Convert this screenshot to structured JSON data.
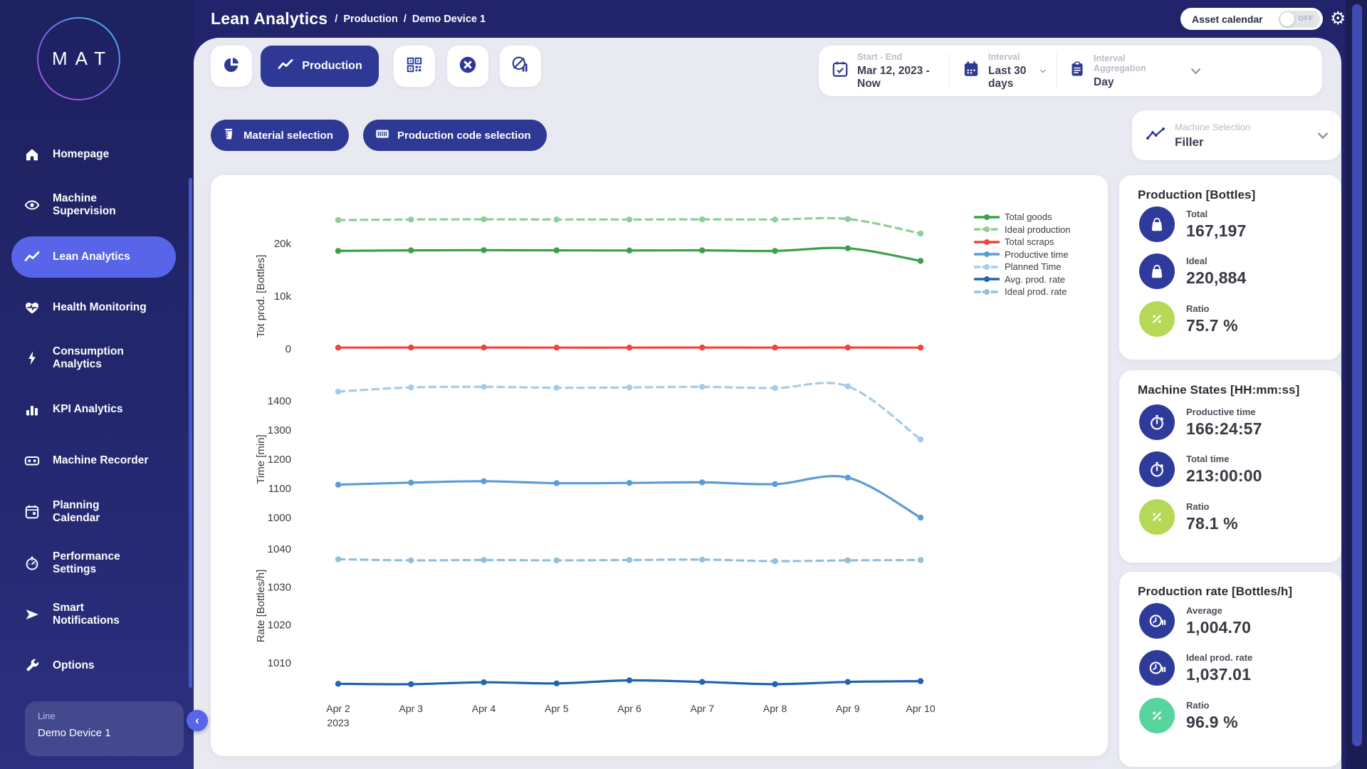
{
  "header": {
    "title": "Lean Analytics",
    "breadcrumbs": [
      "Production",
      "Demo Device 1"
    ],
    "asset_calendar_label": "Asset calendar",
    "asset_calendar_state": "OFF"
  },
  "toolbar": {
    "production_label": "Production"
  },
  "filters": {
    "start_end_label": "Start - End",
    "start_end_value": "Mar 12, 2023 - Now",
    "interval_label": "Interval",
    "interval_value": "Last 30 days",
    "aggregation_label": "Interval Aggregation",
    "aggregation_value": "Day",
    "material_button": "Material selection",
    "production_code_button": "Production code selection",
    "machine_selection_label": "Machine Selection",
    "machine_selection_value": "Filler"
  },
  "sidebar": {
    "logo_text": "MAT",
    "items": [
      {
        "label": "Homepage"
      },
      {
        "label": "Machine\nSupervision"
      },
      {
        "label": "Lean Analytics",
        "active": true
      },
      {
        "label": "Health Monitoring"
      },
      {
        "label": "Consumption\nAnalytics"
      },
      {
        "label": "KPI Analytics"
      },
      {
        "label": "Machine Recorder"
      },
      {
        "label": "Planning\nCalendar"
      },
      {
        "label": "Performance\nSettings"
      },
      {
        "label": "Smart\nNotifications"
      },
      {
        "label": "Options"
      }
    ],
    "line_label": "Line",
    "line_value": "Demo Device 1"
  },
  "colors": {
    "accent": "#2d3994",
    "active_nav": "#5865e8",
    "stat_icon_blue": "#2e3b9b",
    "ratio_lime": "#b5d957",
    "ratio_mint": "#57d59c"
  },
  "chart_data": [
    {
      "type": "line",
      "ylabel": "Tot prod. [Bottles]",
      "x": [
        "Apr 2",
        "Apr 3",
        "Apr 4",
        "Apr 5",
        "Apr 6",
        "Apr 7",
        "Apr 8",
        "Apr 9",
        "Apr 10"
      ],
      "x_sublabel": "2023",
      "yticks": [
        0,
        10000,
        20000
      ],
      "ytick_labels": [
        "0",
        "10k",
        "20k"
      ],
      "ylim": [
        -1800,
        26500
      ],
      "grid": false,
      "legend_position": "right",
      "series": [
        {
          "name": "Total goods",
          "color": "#3aa04a",
          "dashed": false,
          "values": [
            18600,
            18700,
            18750,
            18700,
            18680,
            18700,
            18600,
            19100,
            16700
          ]
        },
        {
          "name": "Ideal production",
          "color": "#8fce97",
          "dashed": true,
          "values": [
            24450,
            24550,
            24600,
            24550,
            24560,
            24580,
            24550,
            24650,
            21900
          ]
        },
        {
          "name": "Total scraps",
          "color": "#ef453c",
          "dashed": false,
          "values": [
            250,
            260,
            255,
            250,
            250,
            255,
            250,
            260,
            250
          ]
        }
      ]
    },
    {
      "type": "line",
      "ylabel": "Time [min]",
      "x": [
        "Apr 2",
        "Apr 3",
        "Apr 4",
        "Apr 5",
        "Apr 6",
        "Apr 7",
        "Apr 8",
        "Apr 9",
        "Apr 10"
      ],
      "yticks": [
        1000,
        1100,
        1200,
        1300,
        1400
      ],
      "ytick_labels": [
        "1000",
        "1100",
        "1200",
        "1300",
        "1400"
      ],
      "ylim": [
        960,
        1500
      ],
      "grid": false,
      "series": [
        {
          "name": "Productive time",
          "color": "#5b9cd6",
          "dashed": false,
          "values": [
            1113,
            1120,
            1125,
            1118,
            1119,
            1121,
            1115,
            1137,
            1000
          ]
        },
        {
          "name": "Planned Time",
          "color": "#a6cbea",
          "dashed": true,
          "values": [
            1432,
            1446,
            1448,
            1445,
            1446,
            1448,
            1444,
            1450,
            1268
          ]
        }
      ]
    },
    {
      "type": "line",
      "ylabel": "Rate [Bottles/h]",
      "x": [
        "Apr 2",
        "Apr 3",
        "Apr 4",
        "Apr 5",
        "Apr 6",
        "Apr 7",
        "Apr 8",
        "Apr 9",
        "Apr 10"
      ],
      "yticks": [
        1010,
        1020,
        1030,
        1040
      ],
      "ytick_labels": [
        "1010",
        "1020",
        "1030",
        "1040"
      ],
      "ylim": [
        1001,
        1043
      ],
      "grid": false,
      "series": [
        {
          "name": "Avg. prod. rate",
          "color": "#2065ab",
          "dashed": false,
          "values": [
            1004.5,
            1004.4,
            1004.9,
            1004.6,
            1005.4,
            1005.0,
            1004.4,
            1005.0,
            1005.2
          ]
        },
        {
          "name": "Ideal prod. rate",
          "color": "#93bede",
          "dashed": true,
          "values": [
            1037.3,
            1037.0,
            1037.1,
            1037.0,
            1037.1,
            1037.2,
            1036.8,
            1037.0,
            1037.1
          ]
        }
      ]
    }
  ],
  "panels": [
    {
      "title": "Production [Bottles]",
      "stats": [
        {
          "label": "Total",
          "value": "167,197"
        },
        {
          "label": "Ideal",
          "value": "220,884"
        },
        {
          "label": "Ratio",
          "value": "75.7 %"
        }
      ]
    },
    {
      "title": "Machine States [HH:mm:ss]",
      "stats": [
        {
          "label": "Productive time",
          "value": "166:24:57"
        },
        {
          "label": "Total time",
          "value": "213:00:00"
        },
        {
          "label": "Ratio",
          "value": "78.1 %"
        }
      ]
    },
    {
      "title": "Production rate [Bottles/h]",
      "stats": [
        {
          "label": "Average",
          "value": "1,004.70"
        },
        {
          "label": "Ideal prod. rate",
          "value": "1,037.01"
        },
        {
          "label": "Ratio",
          "value": "96.9 %"
        }
      ]
    }
  ]
}
